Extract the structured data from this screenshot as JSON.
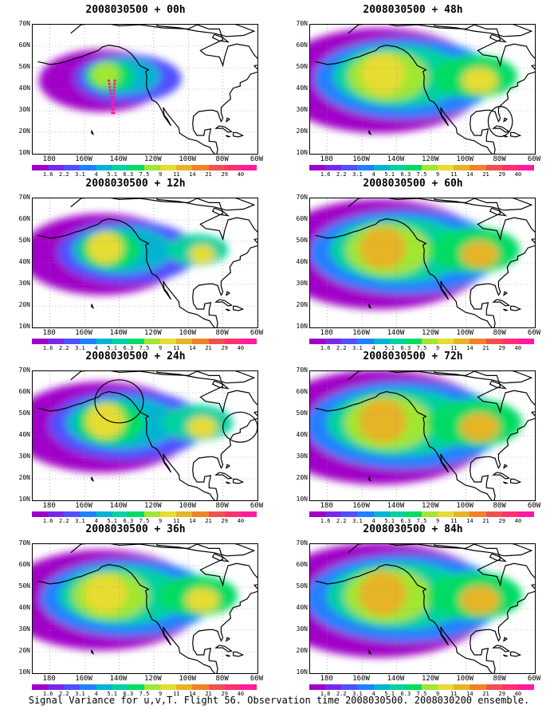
{
  "caption": "Signal Variance for u,v,T. Flight 56. Observation time 2008030500. 2008030200 ensemble.",
  "lat_labels": [
    "70N",
    "60N",
    "50N",
    "40N",
    "30N",
    "20N",
    "10N"
  ],
  "lon_labels": [
    "180",
    "160W",
    "140W",
    "120W",
    "100W",
    "80W",
    "60W"
  ],
  "colorbar": {
    "labels": [
      "1.6",
      "2.2",
      "3.1",
      "4",
      "5.1",
      "6.3",
      "7.5",
      "9",
      "11",
      "14",
      "21",
      "29",
      "40"
    ],
    "colors": [
      "#a000c8",
      "#7a28e8",
      "#5050ff",
      "#2080ff",
      "#00b4d2",
      "#00d2a0",
      "#00dc64",
      "#a0e632",
      "#e6dc32",
      "#e6b428",
      "#f08228",
      "#f05050",
      "#ff3070",
      "#ff1aa0"
    ]
  },
  "panels": [
    {
      "title": "2008030500 + 00h",
      "intensity": 0.35,
      "spread": 0.45,
      "ellipses": [],
      "dots": true
    },
    {
      "title": "2008030500 + 12h",
      "intensity": 0.55,
      "spread": 0.65,
      "ellipses": [],
      "dots": false
    },
    {
      "title": "2008030500 + 24h",
      "intensity": 0.65,
      "spread": 0.75,
      "ellipses": [
        {
          "lon": -140,
          "lat": 56,
          "rlon": 14,
          "rlat": 10
        },
        {
          "lon": -70,
          "lat": 44,
          "rlon": 10,
          "rlat": 7
        }
      ],
      "dots": false
    },
    {
      "title": "2008030500 + 36h",
      "intensity": 0.75,
      "spread": 0.85,
      "ellipses": [],
      "dots": false
    },
    {
      "title": "2008030500 + 48h",
      "intensity": 0.8,
      "spread": 0.9,
      "ellipses": [
        {
          "lon": -80,
          "lat": 25,
          "rlon": 7,
          "rlat": 7
        }
      ],
      "dots": false
    },
    {
      "title": "2008030500 + 60h",
      "intensity": 0.85,
      "spread": 0.95,
      "ellipses": [],
      "dots": false
    },
    {
      "title": "2008030500 + 72h",
      "intensity": 0.9,
      "spread": 1.0,
      "ellipses": [],
      "dots": false
    },
    {
      "title": "2008030500 + 84h",
      "intensity": 0.95,
      "spread": 1.0,
      "ellipses": [],
      "dots": false
    }
  ]
}
